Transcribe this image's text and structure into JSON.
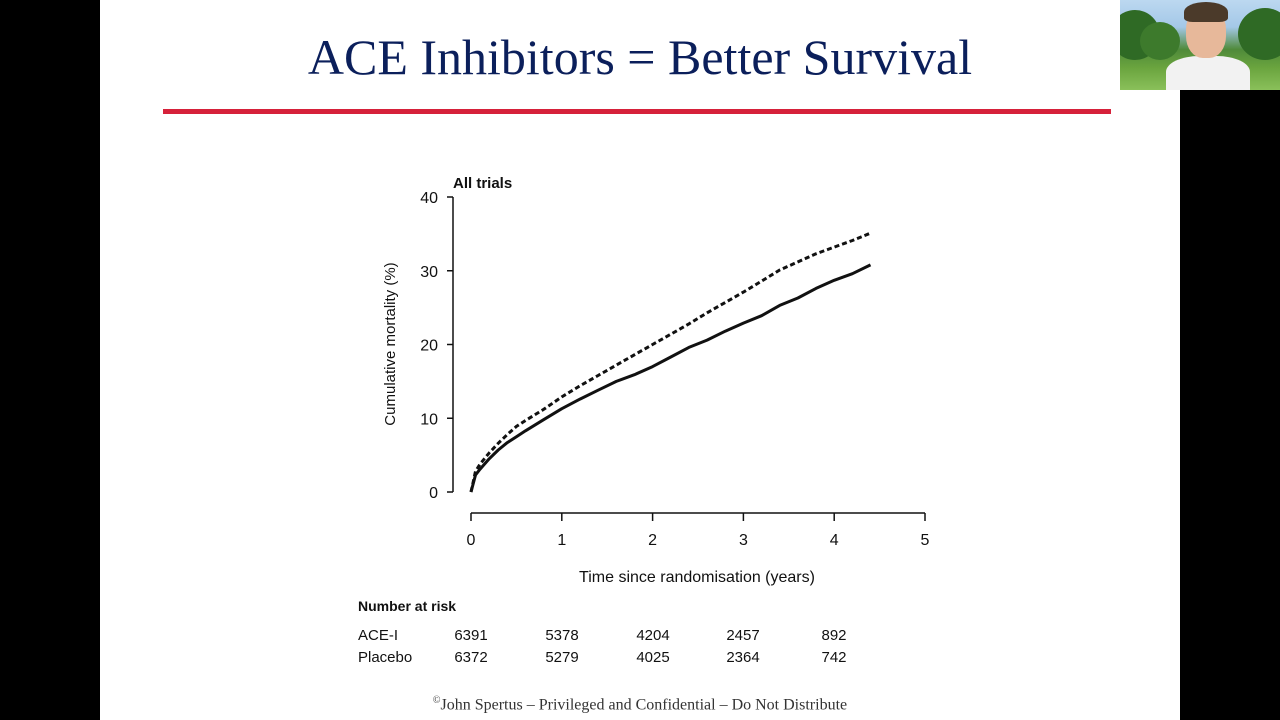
{
  "slide": {
    "title": "ACE Inhibitors = Better Survival",
    "footer_mark": "©",
    "footer_text": "John Spertus – Privileged and Confidential – Do Not Distribute",
    "accent_color": "#d6213a",
    "title_color": "#0b1f5b"
  },
  "chart_data": {
    "type": "line",
    "title": "All trials",
    "xlabel": "Time since randomisation (years)",
    "ylabel": "Cumulative mortality (%)",
    "xlim": [
      0,
      5
    ],
    "ylim": [
      0,
      40
    ],
    "xticks": [
      "0",
      "1",
      "2",
      "3",
      "4",
      "5"
    ],
    "yticks": [
      "0",
      "10",
      "20",
      "30",
      "40"
    ],
    "grid": false,
    "series": [
      {
        "name": "Placebo",
        "style": "dashed",
        "x": [
          0,
          0.05,
          0.1,
          0.2,
          0.3,
          0.4,
          0.5,
          0.6,
          0.8,
          1.0,
          1.2,
          1.4,
          1.6,
          1.8,
          2.0,
          2.2,
          2.4,
          2.6,
          2.8,
          3.0,
          3.2,
          3.4,
          3.6,
          3.8,
          4.0,
          4.2,
          4.4
        ],
        "y": [
          0,
          2.8,
          3.8,
          5.3,
          6.6,
          7.8,
          8.9,
          9.7,
          11.2,
          12.9,
          14.4,
          15.8,
          17.2,
          18.6,
          20.0,
          21.4,
          22.8,
          24.3,
          25.7,
          27.1,
          28.6,
          30.1,
          31.2,
          32.3,
          33.2,
          34.1,
          35.1
        ]
      },
      {
        "name": "ACE-I",
        "style": "solid",
        "x": [
          0,
          0.05,
          0.1,
          0.2,
          0.3,
          0.4,
          0.5,
          0.6,
          0.8,
          1.0,
          1.2,
          1.4,
          1.6,
          1.8,
          2.0,
          2.2,
          2.4,
          2.6,
          2.8,
          3.0,
          3.2,
          3.4,
          3.6,
          3.8,
          4.0,
          4.2,
          4.4
        ],
        "y": [
          0,
          2.3,
          3.1,
          4.5,
          5.7,
          6.7,
          7.5,
          8.3,
          9.8,
          11.3,
          12.6,
          13.8,
          15.0,
          15.9,
          17.0,
          18.3,
          19.6,
          20.6,
          21.8,
          22.9,
          23.9,
          25.3,
          26.3,
          27.6,
          28.7,
          29.6,
          30.8
        ]
      }
    ],
    "risk_table": {
      "header": "Number at risk",
      "rows": [
        {
          "label": "ACE-I",
          "values": [
            "6391",
            "5378",
            "4204",
            "2457",
            "892"
          ]
        },
        {
          "label": "Placebo",
          "values": [
            "6372",
            "5279",
            "4025",
            "2364",
            "742"
          ]
        }
      ]
    }
  }
}
